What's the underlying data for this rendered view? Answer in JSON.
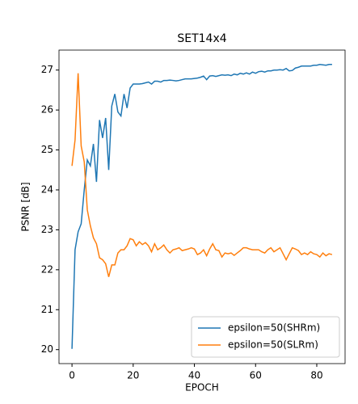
{
  "chart_data": {
    "type": "line",
    "title": "SET14x4",
    "xlabel": "EPOCH",
    "ylabel": "PSNR [dB]",
    "x": [
      0,
      1,
      2,
      3,
      4,
      5,
      6,
      7,
      8,
      9,
      10,
      11,
      12,
      13,
      14,
      15,
      16,
      17,
      18,
      19,
      20,
      21,
      22,
      23,
      24,
      25,
      26,
      27,
      28,
      29,
      30,
      31,
      32,
      33,
      34,
      35,
      36,
      37,
      38,
      39,
      40,
      41,
      42,
      43,
      44,
      45,
      46,
      47,
      48,
      49,
      50,
      51,
      52,
      53,
      54,
      55,
      56,
      57,
      58,
      59,
      60,
      61,
      62,
      63,
      64,
      65,
      66,
      67,
      68,
      69,
      70,
      71,
      72,
      73,
      74,
      75,
      76,
      77,
      78,
      79,
      80,
      81,
      82,
      83,
      84,
      85
    ],
    "series": [
      {
        "name": "epsilon=50(SHRm)",
        "color": "#1f77b4",
        "values": [
          20.02,
          22.5,
          22.95,
          23.15,
          24.0,
          24.75,
          24.6,
          25.15,
          24.2,
          25.75,
          25.3,
          25.8,
          24.5,
          26.1,
          26.4,
          25.95,
          25.85,
          26.4,
          26.05,
          26.55,
          26.65,
          26.65,
          26.65,
          26.66,
          26.68,
          26.7,
          26.65,
          26.72,
          26.72,
          26.7,
          26.74,
          26.74,
          26.75,
          26.74,
          26.73,
          26.74,
          26.76,
          26.78,
          26.78,
          26.78,
          26.79,
          26.8,
          26.82,
          26.85,
          26.76,
          26.85,
          26.86,
          26.84,
          26.86,
          26.88,
          26.87,
          26.88,
          26.86,
          26.9,
          26.88,
          26.92,
          26.9,
          26.93,
          26.9,
          26.95,
          26.92,
          26.96,
          26.97,
          26.95,
          26.98,
          26.98,
          27.0,
          27.0,
          27.01,
          27.0,
          27.04,
          26.98,
          26.99,
          27.05,
          27.07,
          27.1,
          27.1,
          27.1,
          27.1,
          27.12,
          27.12,
          27.14,
          27.13,
          27.12,
          27.14,
          27.14
        ]
      },
      {
        "name": "epsilon=50(SLRm)",
        "color": "#ff7f0e",
        "values": [
          24.6,
          25.25,
          26.92,
          25.1,
          24.7,
          23.5,
          23.1,
          22.8,
          22.65,
          22.3,
          22.25,
          22.15,
          21.82,
          22.12,
          22.12,
          22.42,
          22.5,
          22.5,
          22.6,
          22.78,
          22.75,
          22.6,
          22.7,
          22.63,
          22.68,
          22.6,
          22.45,
          22.65,
          22.5,
          22.55,
          22.62,
          22.5,
          22.42,
          22.5,
          22.52,
          22.55,
          22.48,
          22.5,
          22.52,
          22.55,
          22.52,
          22.38,
          22.42,
          22.5,
          22.35,
          22.52,
          22.65,
          22.5,
          22.48,
          22.32,
          22.42,
          22.4,
          22.42,
          22.36,
          22.42,
          22.48,
          22.55,
          22.55,
          22.52,
          22.5,
          22.5,
          22.5,
          22.45,
          22.42,
          22.5,
          22.55,
          22.45,
          22.5,
          22.55,
          22.4,
          22.25,
          22.4,
          22.55,
          22.52,
          22.48,
          22.38,
          22.42,
          22.38,
          22.45,
          22.4,
          22.38,
          22.32,
          22.42,
          22.35,
          22.4,
          22.38
        ]
      }
    ],
    "xlim": [
      -4.25,
      89.25
    ],
    "ylim": [
      19.65,
      27.5
    ],
    "xticks": [
      0,
      20,
      40,
      60,
      80
    ],
    "yticks": [
      20,
      21,
      22,
      23,
      24,
      25,
      26,
      27
    ],
    "legend": "lower right"
  }
}
